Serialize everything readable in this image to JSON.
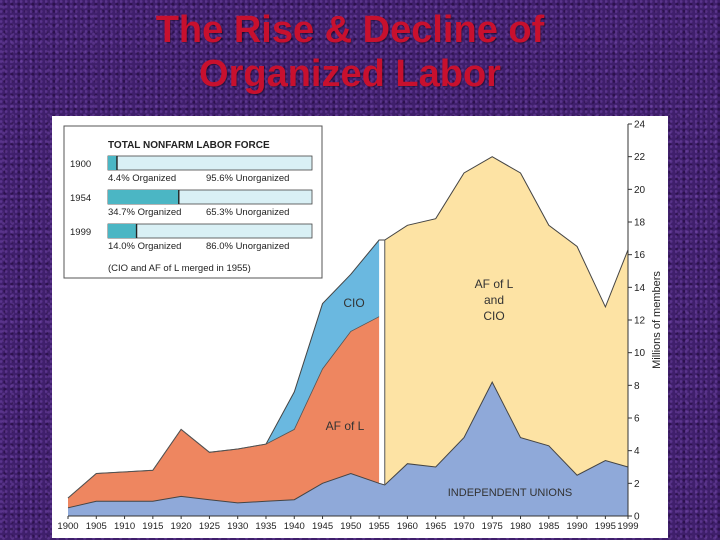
{
  "title": {
    "line1": "The Rise & Decline of",
    "line2": "Organized Labor"
  },
  "chart_data": {
    "type": "area",
    "stacked": true,
    "x": [
      1900,
      1905,
      1910,
      1915,
      1920,
      1925,
      1930,
      1935,
      1940,
      1945,
      1950,
      1955,
      1956,
      1960,
      1965,
      1970,
      1975,
      1980,
      1985,
      1990,
      1995,
      1999
    ],
    "x_tick_labels": [
      "1900",
      "1905",
      "1910",
      "1915",
      "1920",
      "1925",
      "1930",
      "1935",
      "1940",
      "1945",
      "1950",
      "1955",
      "1960",
      "1965",
      "1970",
      "1975",
      "1980",
      "1985",
      "1990",
      "1995",
      "1999"
    ],
    "ylabel": "Millions of members",
    "ylim": [
      0,
      24
    ],
    "y_ticks": [
      "0",
      "2",
      "4",
      "6",
      "8",
      "10",
      "12",
      "14",
      "16",
      "18",
      "20",
      "22",
      "24"
    ],
    "series": [
      {
        "name": "INDEPENDENT UNIONS",
        "color": "#8fa9d9",
        "values": [
          0.5,
          0.9,
          0.9,
          0.9,
          1.2,
          1.0,
          0.8,
          0.9,
          1.0,
          2.0,
          2.6,
          2.0,
          1.9,
          3.2,
          3.0,
          4.8,
          8.2,
          4.8,
          4.3,
          2.5,
          3.4,
          3.0
        ]
      },
      {
        "name": "AF of L",
        "color": "#ee8660",
        "values": [
          0.6,
          1.7,
          1.8,
          1.9,
          4.1,
          2.9,
          3.3,
          3.5,
          4.3,
          7.0,
          8.7,
          10.2,
          0,
          0,
          0,
          0,
          0,
          0,
          0,
          0,
          0,
          0
        ]
      },
      {
        "name": "CIO",
        "color": "#6ab8e0",
        "values": [
          0,
          0,
          0,
          0,
          0,
          0,
          0,
          0,
          2.3,
          4.0,
          3.5,
          4.7,
          0,
          0,
          0,
          0,
          0,
          0,
          0,
          0,
          0,
          0
        ]
      },
      {
        "name": "AF of L and CIO",
        "color": "#fde3a4",
        "values": [
          0,
          0,
          0,
          0,
          0,
          0,
          0,
          0,
          0,
          0,
          0,
          0,
          15.0,
          14.6,
          15.2,
          16.2,
          13.8,
          16.2,
          13.5,
          14.0,
          9.4,
          13.3
        ]
      }
    ],
    "annotations": {
      "cio": "CIO",
      "afl": "AF of L",
      "merged_line1": "AF of L",
      "merged_line2": "and",
      "merged_line3": "CIO",
      "independent": "INDEPENDENT UNIONS"
    },
    "inset": {
      "title": "TOTAL NONFARM LABOR FORCE",
      "footnote": "(CIO and AF of L merged in 1955)",
      "rows": [
        {
          "year": "1900",
          "organized_pct": 4.4,
          "organized_label": "4.4% Organized",
          "unorganized_label": "95.6% Unorganized"
        },
        {
          "year": "1954",
          "organized_pct": 34.7,
          "organized_label": "34.7% Organized",
          "unorganized_label": "65.3% Unorganized"
        },
        {
          "year": "1999",
          "organized_pct": 14.0,
          "organized_label": "14.0% Organized",
          "unorganized_label": "86.0% Unorganized"
        }
      ]
    }
  }
}
